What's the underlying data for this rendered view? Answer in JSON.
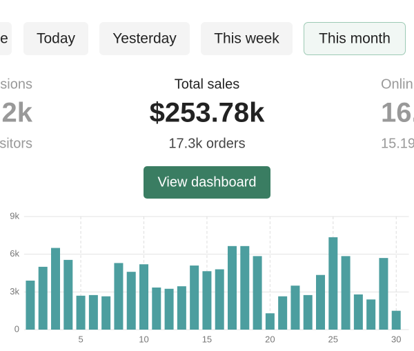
{
  "tabs": [
    "e",
    "Today",
    "Yesterday",
    "This week",
    "This month"
  ],
  "stats": {
    "left": {
      "label": "sions",
      "value": "2k",
      "sub": "sitors"
    },
    "center": {
      "label": "Total sales",
      "value": "$253.78k",
      "sub": "17.3k orders"
    },
    "right": {
      "label": "Onlin",
      "value": "16.",
      "sub": "15.19"
    }
  },
  "button": "View dashboard",
  "chart_data": {
    "type": "bar",
    "color": "#4c9e9f",
    "x": [
      1,
      2,
      3,
      4,
      5,
      6,
      7,
      8,
      9,
      10,
      11,
      12,
      13,
      14,
      15,
      16,
      17,
      18,
      19,
      20,
      21,
      22,
      23,
      24,
      25,
      26,
      27,
      28,
      29,
      30
    ],
    "values": [
      3900,
      5000,
      6500,
      5550,
      2700,
      2750,
      2650,
      5300,
      4600,
      5200,
      3350,
      3250,
      3450,
      5100,
      4650,
      4800,
      6650,
      6650,
      5850,
      1300,
      2650,
      3500,
      2750,
      4350,
      7350,
      5850,
      2800,
      2400,
      5700,
      1500
    ],
    "xlim": [
      0.5,
      31
    ],
    "xticks": [
      5,
      10,
      15,
      20,
      25,
      30
    ],
    "ylim": [
      0,
      9000
    ],
    "yticks": [
      0,
      {
        "value": 3000,
        "label": "3k"
      },
      {
        "value": 6000,
        "label": "6k"
      },
      {
        "value": 9000,
        "label": "9k"
      }
    ],
    "grid": true
  }
}
